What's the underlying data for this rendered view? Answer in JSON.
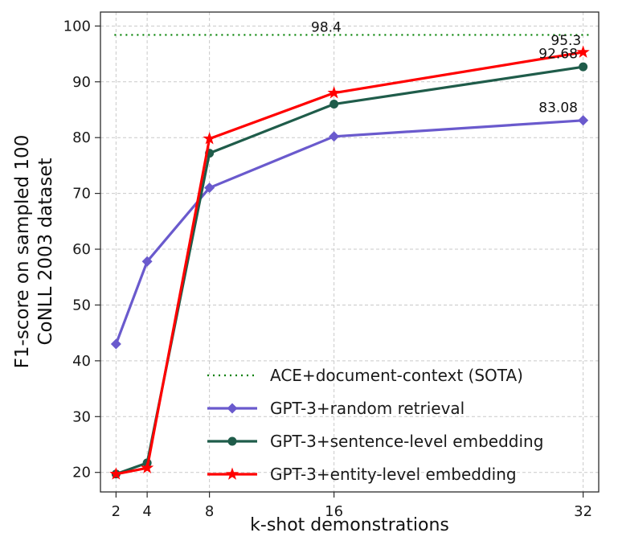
{
  "chart_data": {
    "type": "line",
    "title": "",
    "xlabel": "k-shot demonstrations",
    "ylabel": "F1-score on sampled 100 CoNLL 2003 dataset",
    "ylabel_lines": [
      "F1-score on sampled 100",
      "CoNLL 2003 dataset"
    ],
    "x": [
      2,
      4,
      8,
      16,
      32
    ],
    "xticks": [
      2,
      4,
      8,
      16,
      32
    ],
    "yticks": [
      20,
      30,
      40,
      50,
      60,
      70,
      80,
      90,
      100
    ],
    "xlim": [
      1,
      33
    ],
    "ylim": [
      16.5,
      102.5
    ],
    "grid": true,
    "legend_position": "lower-center",
    "sota": {
      "label": "ACE+document-context (SOTA)",
      "value": 98.4,
      "color": "#008000",
      "linestyle": "dotted"
    },
    "series": [
      {
        "name": "GPT-3+random retrieval",
        "color": "#6a5acd",
        "marker": "diamond",
        "values": [
          43.0,
          57.8,
          71.0,
          80.2,
          83.08
        ]
      },
      {
        "name": "GPT-3+sentence-level embedding",
        "color": "#1f5c4a",
        "marker": "circle",
        "values": [
          19.7,
          21.7,
          77.2,
          86.0,
          92.68
        ]
      },
      {
        "name": "GPT-3+entity-level embedding",
        "color": "#ff0000",
        "marker": "star",
        "values": [
          19.7,
          20.8,
          79.8,
          88.0,
          95.3
        ]
      }
    ],
    "annotations": [
      {
        "text": "98.4",
        "x": 15.5,
        "y": 99.0
      },
      {
        "text": "95.3",
        "x": 30.9,
        "y": 96.6
      },
      {
        "text": "92.68",
        "x": 30.4,
        "y": 94.2
      },
      {
        "text": "83.08",
        "x": 30.4,
        "y": 84.6
      }
    ]
  }
}
